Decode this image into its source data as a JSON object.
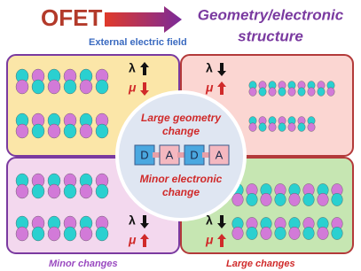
{
  "header": {
    "title": "OFET",
    "arrow_label": "External electric field",
    "result": [
      "Geometry/electronic",
      "structure"
    ]
  },
  "quadrants": [
    {
      "lambda": "λ",
      "mu": "μ"
    },
    {
      "lambda": "λ",
      "mu": "μ"
    },
    {
      "lambda": "λ",
      "mu": "μ"
    },
    {
      "lambda": "λ",
      "mu": "μ"
    }
  ],
  "center": {
    "top_text": [
      "Large geometry",
      "change"
    ],
    "units": [
      "D",
      "A",
      "D",
      "A"
    ],
    "bottom_text": [
      "Minor electronic",
      "change"
    ]
  },
  "captions": {
    "left": "Minor changes",
    "right": "Large changes"
  }
}
